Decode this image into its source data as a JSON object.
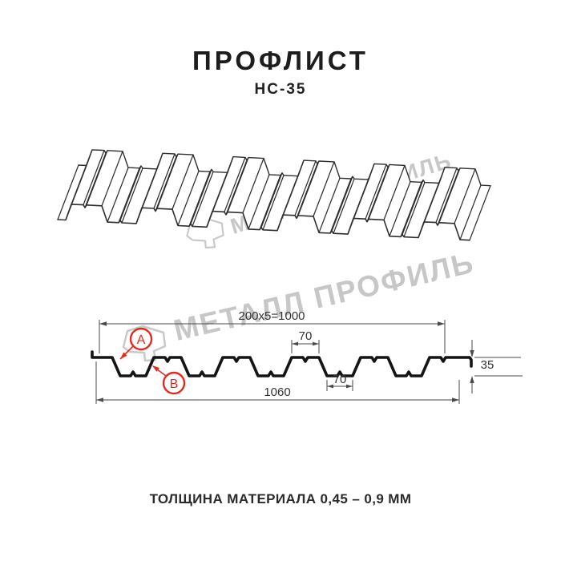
{
  "title": "ПРОФЛИСТ",
  "subtitle": "НС-35",
  "footer_note": "ТОЛЩИНА МАТЕРИАЛА 0,45 – 0,9 ММ",
  "watermark": {
    "text": "МЕТАЛЛ ПРОФИЛЬ",
    "color": "#c7c7c7"
  },
  "callouts": {
    "a": "A",
    "b": "B"
  },
  "dimensions": {
    "coverage_width": "200x5=1000",
    "flange_width": "70",
    "valley_width": "70",
    "profile_height": "35",
    "overall_width": "1060"
  },
  "colors": {
    "red": "#e5291f",
    "profile_line": "#141414",
    "sheet_line": "#2e2e2e",
    "dim_line": "#4a4a4a",
    "dim_text": "#333333"
  }
}
